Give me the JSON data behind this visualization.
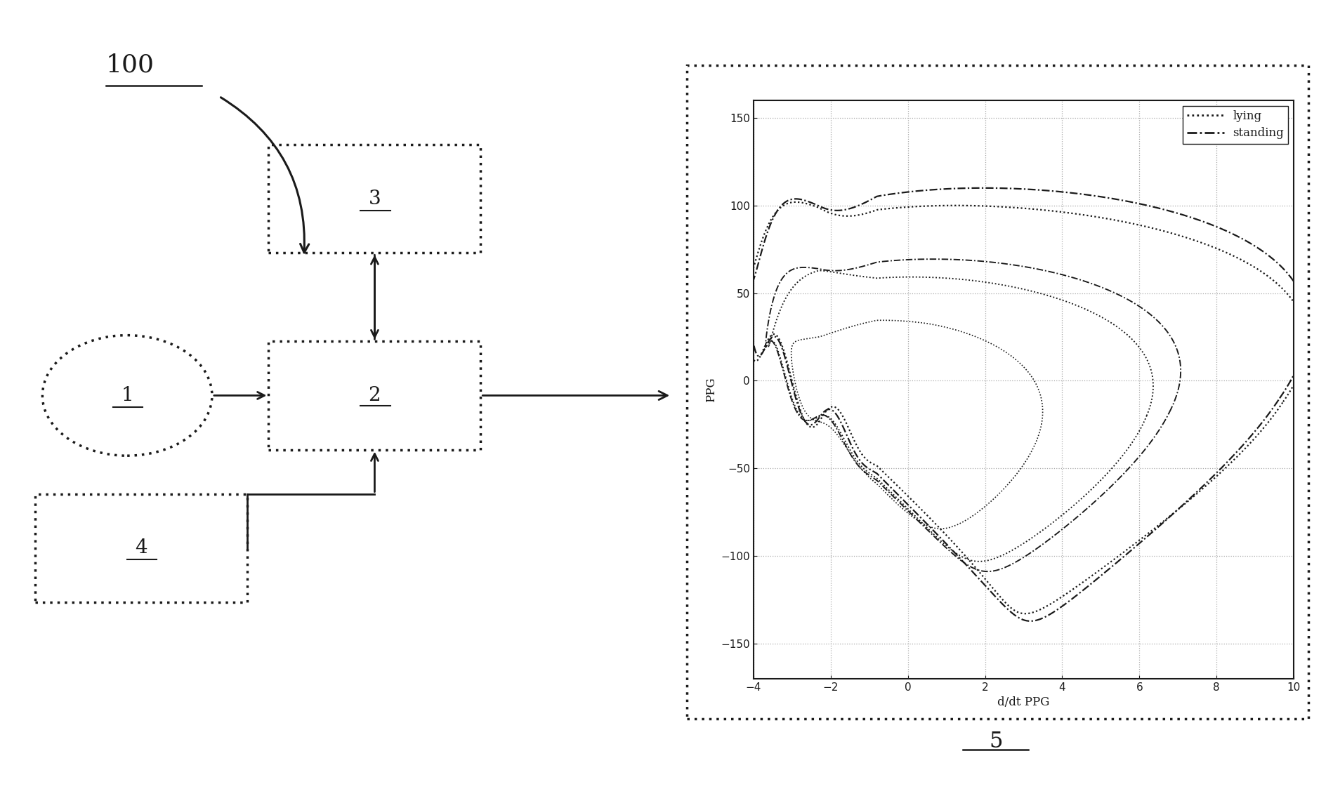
{
  "background_color": "#ffffff",
  "fig_width": 18.99,
  "fig_height": 11.44,
  "title_label": "100",
  "block1_label": "1",
  "block2_label": "2",
  "block3_label": "3",
  "block4_label": "4",
  "block5_label": "5",
  "plot_xlabel": "d/dt PPG",
  "plot_ylabel": "PPG",
  "plot_xlim": [
    -4,
    10
  ],
  "plot_ylim": [
    -170,
    160
  ],
  "plot_xticks": [
    -4,
    -2,
    0,
    2,
    4,
    6,
    8,
    10
  ],
  "plot_yticks": [
    -150,
    -100,
    -50,
    0,
    50,
    100,
    150
  ],
  "legend_labels": [
    "lying",
    "standing"
  ],
  "line_color": "#1a1a1a",
  "grid_color": "#aaaaaa"
}
